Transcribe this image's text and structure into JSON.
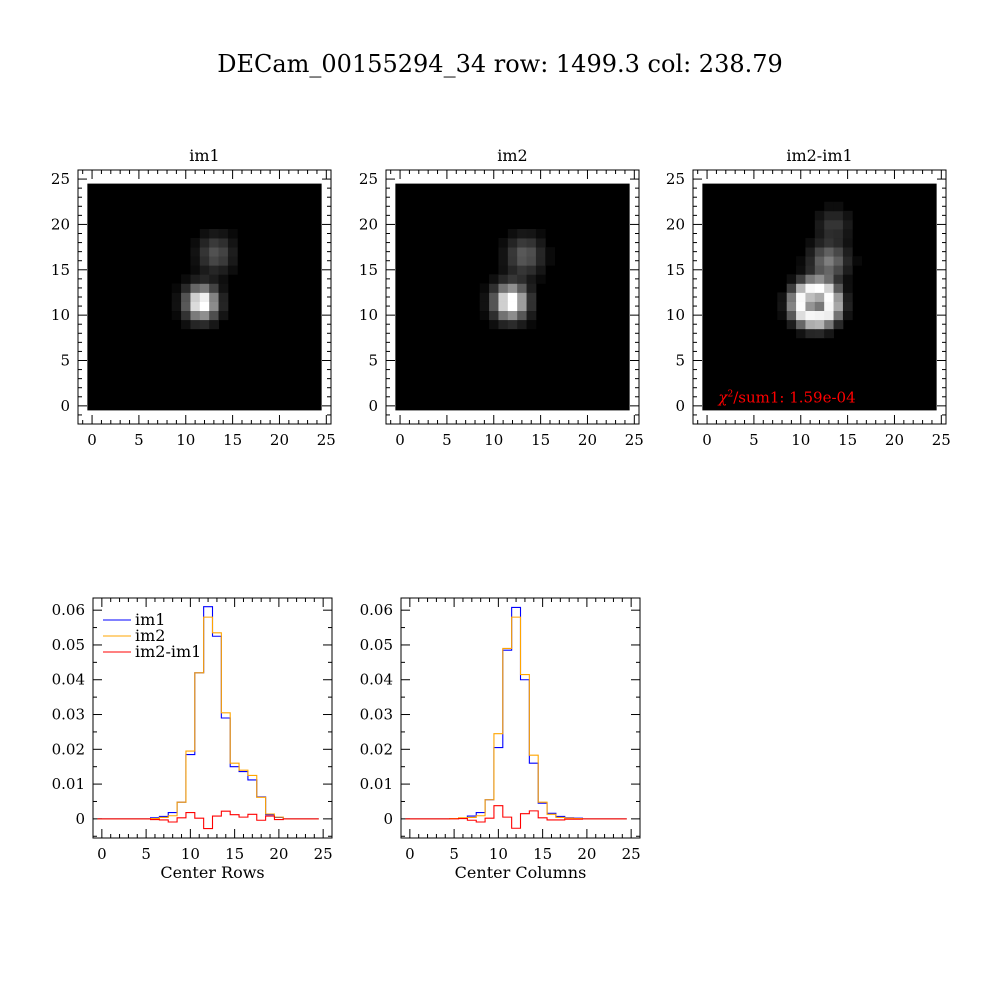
{
  "title": "DECam_00155294_34 row: 1499.3 col: 238.79",
  "colors": {
    "im1": "#0000ff",
    "im2": "#ffa500",
    "diff": "#ff0000",
    "annotation": "#ff0000"
  },
  "chart_data": [
    {
      "type": "heatmap",
      "title": "im1",
      "xticks": [
        "0",
        "5",
        "10",
        "15",
        "20",
        "25"
      ],
      "yticks": [
        "0",
        "5",
        "10",
        "15",
        "20",
        "25"
      ],
      "xlim": [
        -1.5,
        25.5
      ],
      "ylim": [
        -2,
        26
      ],
      "image": {
        "x_range": [
          -0.5,
          24.5
        ],
        "y_range": [
          -0.5,
          24.5
        ],
        "sources": [
          {
            "x": 11.7,
            "y": 11.4,
            "sx": 1.15,
            "sy": 1.25,
            "amp": 1.0
          },
          {
            "x": 13.2,
            "y": 16.8,
            "sx": 1.25,
            "sy": 1.4,
            "amp": 0.3
          }
        ]
      }
    },
    {
      "type": "heatmap",
      "title": "im2",
      "xticks": [
        "0",
        "5",
        "10",
        "15",
        "20",
        "25"
      ],
      "yticks": [
        "0",
        "5",
        "10",
        "15",
        "20",
        "25"
      ],
      "xlim": [
        -1.5,
        25.5
      ],
      "ylim": [
        -2,
        26
      ],
      "image": {
        "x_range": [
          -0.5,
          24.5
        ],
        "y_range": [
          -0.5,
          24.5
        ],
        "sources": [
          {
            "x": 11.8,
            "y": 11.5,
            "sx": 1.2,
            "sy": 1.3,
            "amp": 0.95
          },
          {
            "x": 13.3,
            "y": 16.6,
            "sx": 1.3,
            "sy": 1.45,
            "amp": 0.32
          }
        ]
      }
    },
    {
      "type": "heatmap",
      "title": "im2-im1",
      "xticks": [
        "0",
        "5",
        "10",
        "15",
        "20",
        "25"
      ],
      "yticks": [
        "0",
        "5",
        "10",
        "15",
        "20",
        "25"
      ],
      "xlim": [
        -1.5,
        25.5
      ],
      "ylim": [
        -2,
        26
      ],
      "annotation": {
        "label": "/sum1:",
        "value": "1.59e-04"
      },
      "image": {
        "x_range": [
          -0.5,
          24.5
        ],
        "y_range": [
          -0.5,
          24.5
        ],
        "ring": {
          "x": 11.6,
          "y": 11.3,
          "r": 1.6,
          "width": 0.9,
          "amp": 1.0
        },
        "blobs": [
          {
            "x": 13.0,
            "y": 16.0,
            "s": 1.3,
            "amp": 0.5
          },
          {
            "x": 13.5,
            "y": 20.0,
            "s": 1.2,
            "amp": 0.22
          }
        ]
      }
    },
    {
      "type": "line",
      "xlabel": "Center Rows",
      "xlim": [
        -1,
        26
      ],
      "ylim": [
        -0.0055,
        0.0635
      ],
      "xticks": [
        "0",
        "5",
        "10",
        "15",
        "20",
        "25"
      ],
      "yticks": [
        "0",
        "0.01",
        "0.02",
        "0.03",
        "0.04",
        "0.05",
        "0.06"
      ],
      "legend": [
        "im1",
        "im2",
        "im2-im1"
      ],
      "x": [
        0,
        1,
        2,
        3,
        4,
        5,
        6,
        7,
        8,
        9,
        10,
        11,
        12,
        13,
        14,
        15,
        16,
        17,
        18,
        19,
        20,
        21,
        22,
        23,
        24
      ],
      "series": [
        {
          "name": "im1",
          "values": [
            0,
            0,
            0,
            0,
            0,
            0,
            0.0003,
            0.0007,
            0.0018,
            0.0048,
            0.0185,
            0.042,
            0.061,
            0.0525,
            0.029,
            0.015,
            0.0136,
            0.0112,
            0.0063,
            0.0012,
            0.0004,
            0,
            0,
            0,
            0
          ]
        },
        {
          "name": "im2",
          "values": [
            0,
            0,
            0,
            0,
            0,
            0,
            0.0001,
            0.0004,
            0.0009,
            0.0048,
            0.0195,
            0.042,
            0.058,
            0.0535,
            0.0305,
            0.016,
            0.014,
            0.0125,
            0.0062,
            0.0014,
            0.0005,
            0,
            0,
            0,
            0
          ]
        },
        {
          "name": "im2-im1",
          "values": [
            0,
            0,
            0,
            0,
            0,
            0,
            -0.0002,
            -0.0003,
            -0.0009,
            0.0003,
            0.0018,
            0.0002,
            -0.0028,
            0.0008,
            0.0022,
            0.0012,
            0.0005,
            0.0013,
            -0.0004,
            0.0008,
            -0.0002,
            0,
            0,
            0,
            0
          ]
        }
      ]
    },
    {
      "type": "line",
      "xlabel": "Center Columns",
      "xlim": [
        -1,
        26
      ],
      "ylim": [
        -0.0055,
        0.0635
      ],
      "xticks": [
        "0",
        "5",
        "10",
        "15",
        "20",
        "25"
      ],
      "yticks": [
        "0",
        "0.01",
        "0.02",
        "0.03",
        "0.04",
        "0.05",
        "0.06"
      ],
      "x": [
        0,
        1,
        2,
        3,
        4,
        5,
        6,
        7,
        8,
        9,
        10,
        11,
        12,
        13,
        14,
        15,
        16,
        17,
        18,
        19,
        20,
        21,
        22,
        23,
        24
      ],
      "series": [
        {
          "name": "im1",
          "values": [
            0,
            0,
            0,
            0,
            0,
            0.0001,
            0.0002,
            0.0008,
            0.0018,
            0.0055,
            0.0205,
            0.0485,
            0.0608,
            0.04,
            0.016,
            0.0045,
            0.0016,
            0.0007,
            0.0003,
            0.0002,
            0,
            0,
            0,
            0,
            0
          ]
        },
        {
          "name": "im2",
          "values": [
            0,
            0,
            0,
            0,
            0,
            0.0001,
            0.0003,
            0.0004,
            0.0009,
            0.0055,
            0.0245,
            0.049,
            0.058,
            0.0415,
            0.0183,
            0.0048,
            0.0013,
            0.0004,
            0.0002,
            0.0001,
            0,
            0,
            0,
            0,
            0
          ]
        },
        {
          "name": "im2-im1",
          "values": [
            0,
            0,
            0,
            0,
            0,
            0,
            0.0001,
            -0.0004,
            -0.0009,
            0.0002,
            0.0038,
            0.0005,
            -0.0027,
            0.0015,
            0.0023,
            0.0003,
            -0.0003,
            -0.0003,
            -0.0001,
            -0.0001,
            0,
            0,
            0,
            0,
            0
          ]
        }
      ]
    }
  ]
}
